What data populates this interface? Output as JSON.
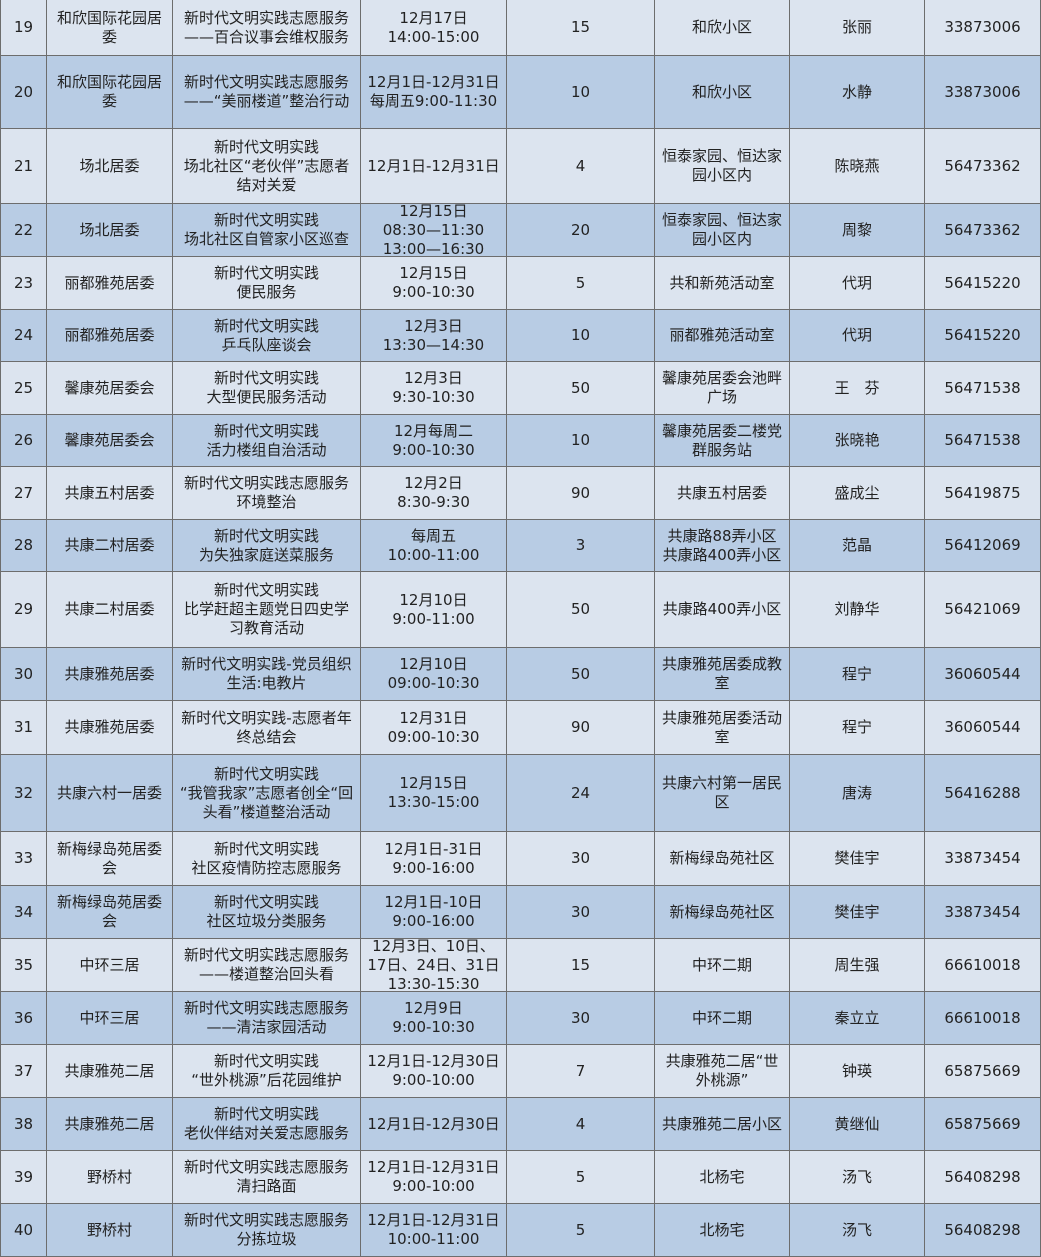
{
  "table": {
    "rows": [
      [
        "19",
        "和欣国际花园居委",
        "新时代文明实践志愿服务——百合议事会维权服务",
        "12月17日\n14:00-15:00",
        "15",
        "和欣小区",
        "张丽",
        "33873006"
      ],
      [
        "20",
        "和欣国际花园居委",
        "新时代文明实践志愿服务——“美丽楼道”整治行动",
        "12月1日-12月31日\n每周五9:00-11:30",
        "10",
        "和欣小区",
        "水静",
        "33873006"
      ],
      [
        "21",
        "场北居委",
        "新时代文明实践\n场北社区“老伙伴”志愿者结对关爱",
        "12月1日-12月31日",
        "4",
        "恒泰家园、恒达家园小区内",
        "陈晓燕",
        "56473362"
      ],
      [
        "22",
        "场北居委",
        "新时代文明实践\n场北社区自管家小区巡查",
        "12月15日\n08:30—11:30\n13:00—16:30",
        "20",
        "恒泰家园、恒达家园小区内",
        "周黎",
        "56473362"
      ],
      [
        "23",
        "丽都雅苑居委",
        "新时代文明实践\n便民服务",
        "12月15日\n9:00-10:30",
        "5",
        "共和新苑活动室",
        "代玥",
        "56415220"
      ],
      [
        "24",
        "丽都雅苑居委",
        "新时代文明实践\n乒乓队座谈会",
        "12月3日\n13:30—14:30",
        "10",
        "丽都雅苑活动室",
        "代玥",
        "56415220"
      ],
      [
        "25",
        "馨康苑居委会",
        "新时代文明实践\n大型便民服务活动",
        "12月3日\n9:30-10:30",
        "50",
        "馨康苑居委会池畔广场",
        "王　芬",
        "56471538"
      ],
      [
        "26",
        "馨康苑居委会",
        "新时代文明实践\n活力楼组自治活动",
        "12月每周二\n9:00-10:30",
        "10",
        "馨康苑居委二楼党群服务站",
        "张晓艳",
        "56471538"
      ],
      [
        "27",
        "共康五村居委",
        "新时代文明实践志愿服务\n环境整治",
        "12月2日\n8:30-9:30",
        "90",
        "共康五村居委",
        "盛成尘",
        "56419875"
      ],
      [
        "28",
        "共康二村居委",
        "新时代文明实践\n为失独家庭送菜服务",
        "每周五\n10:00-11:00",
        "3",
        "共康路88弄小区\n共康路400弄小区",
        "范晶",
        "56412069"
      ],
      [
        "29",
        "共康二村居委",
        "新时代文明实践\n比学赶超主题党日四史学习教育活动",
        "12月10日\n9:00-11:00",
        "50",
        "共康路400弄小区",
        "刘静华",
        "56421069"
      ],
      [
        "30",
        "共康雅苑居委",
        "新时代文明实践-党员组织生活:电教片",
        "12月10日\n09:00-10:30",
        "50",
        "共康雅苑居委成教室",
        "程宁",
        "36060544"
      ],
      [
        "31",
        "共康雅苑居委",
        "新时代文明实践-志愿者年终总结会",
        "12月31日\n09:00-10:30",
        "90",
        "共康雅苑居委活动室",
        "程宁",
        "36060544"
      ],
      [
        "32",
        "共康六村一居委",
        "新时代文明实践\n“我管我家”志愿者创全“回头看”楼道整治活动",
        "12月15日\n13:30-15:00",
        "24",
        "共康六村第一居民区",
        "唐涛",
        "56416288"
      ],
      [
        "33",
        "新梅绿岛苑居委会",
        "新时代文明实践\n社区疫情防控志愿服务",
        "12月1日-31日\n9:00-16:00",
        "30",
        "新梅绿岛苑社区",
        "樊佳宇",
        "33873454"
      ],
      [
        "34",
        "新梅绿岛苑居委会",
        "新时代文明实践\n社区垃圾分类服务",
        "12月1日-10日\n9:00-16:00",
        "30",
        "新梅绿岛苑社区",
        "樊佳宇",
        "33873454"
      ],
      [
        "35",
        "中环三居",
        "新时代文明实践志愿服务——楼道整治回头看",
        "12月3日、10日、17日、24日、31日\n13:30-15:30",
        "15",
        "中环二期",
        "周生强",
        "66610018"
      ],
      [
        "36",
        "中环三居",
        "新时代文明实践志愿服务——清洁家园活动",
        "12月9日\n9:00-10:30",
        "30",
        "中环二期",
        "秦立立",
        "66610018"
      ],
      [
        "37",
        "共康雅苑二居",
        "新时代文明实践\n“世外桃源”后花园维护",
        "12月1日-12月30日\n9:00-10:00",
        "7",
        "共康雅苑二居“世外桃源”",
        "钟瑛",
        "65875669"
      ],
      [
        "38",
        "共康雅苑二居",
        "新时代文明实践\n老伙伴结对关爱志愿服务",
        "12月1日-12月30日",
        "4",
        "共康雅苑二居小区",
        "黄继仙",
        "65875669"
      ],
      [
        "39",
        "野桥村",
        "新时代文明实践志愿服务\n清扫路面",
        "12月1日-12月31日\n9:00-10:00",
        "5",
        "北杨宅",
        "汤飞",
        "56408298"
      ],
      [
        "40",
        "野桥村",
        "新时代文明实践志愿服务\n分拣垃圾",
        "12月1日-12月31日\n10:00-11:00",
        "5",
        "北杨宅",
        "汤飞",
        "56408298"
      ]
    ]
  }
}
